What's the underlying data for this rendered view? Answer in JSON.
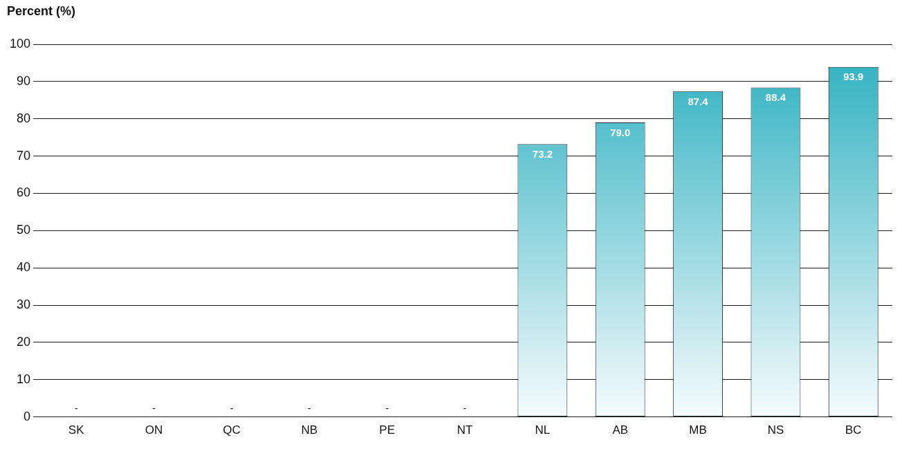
{
  "chart_data": {
    "type": "bar",
    "ylabel": "Percent (%)",
    "categories": [
      "SK",
      "ON",
      "QC",
      "NB",
      "PE",
      "NT",
      "NL",
      "AB",
      "MB",
      "NS",
      "BC"
    ],
    "values": [
      null,
      null,
      null,
      null,
      null,
      null,
      73.2,
      79.0,
      87.4,
      88.4,
      93.9
    ],
    "value_labels": [
      "-",
      "-",
      "-",
      "-",
      "-",
      "-",
      "73.2",
      "79.0",
      "87.4",
      "88.4",
      "93.9"
    ],
    "color": "#2aafbf",
    "ylim": [
      0,
      100
    ],
    "yticks": [
      0,
      10,
      20,
      30,
      40,
      50,
      60,
      70,
      80,
      90,
      100
    ],
    "grid": "y",
    "legend": false
  }
}
